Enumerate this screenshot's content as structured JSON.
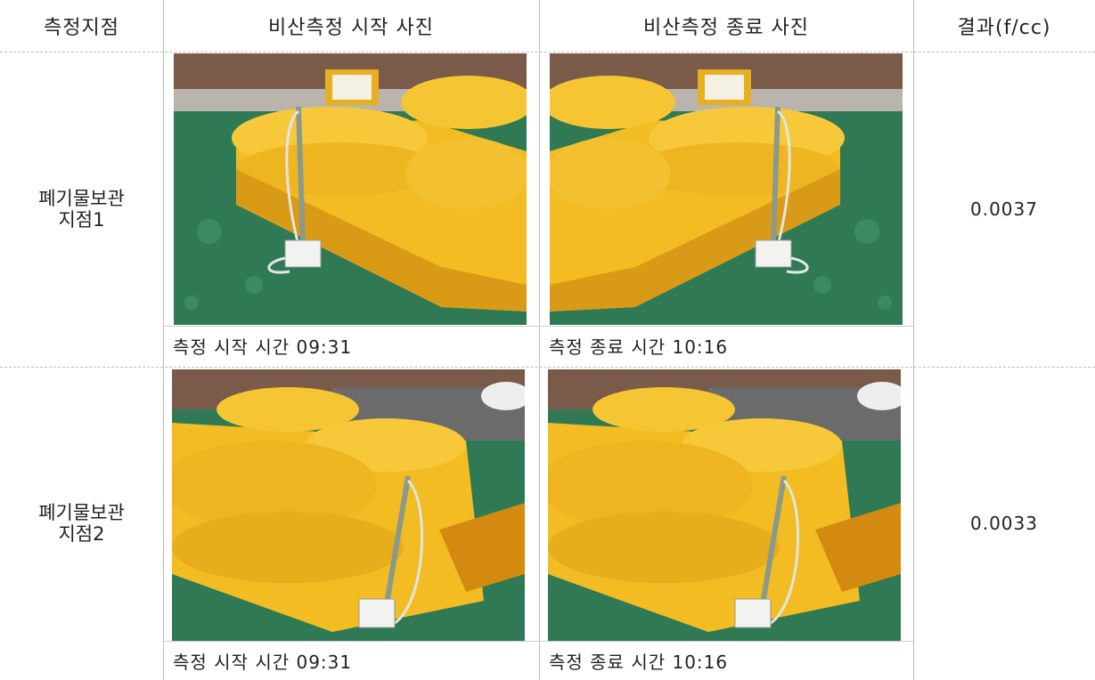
{
  "table": {
    "headers": [
      "측정지점",
      "비산측정 시작 사진",
      "비산측정 종료 사진",
      "결과(f/cc)"
    ],
    "rows": [
      {
        "location": [
          "폐기물보관",
          "지점1"
        ],
        "start_caption": "측정 시작 시간 09:31",
        "end_caption": "측정 종료 시간 10:16",
        "result": "0.0037"
      },
      {
        "location": [
          "폐기물보관",
          "지점2"
        ],
        "start_caption": "측정 시작 시간 09:31",
        "end_caption": "측정 종료 시간 10:16",
        "result": "0.0033"
      }
    ]
  }
}
